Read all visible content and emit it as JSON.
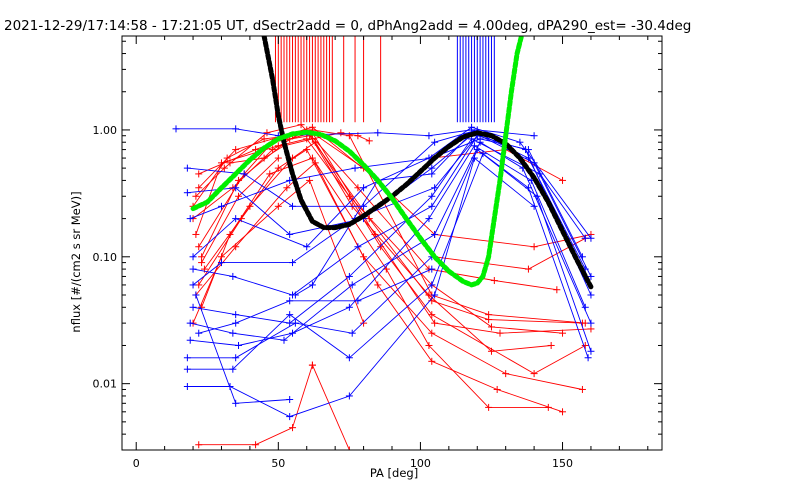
{
  "title": "2021-12-29/17:14:58 - 17:21:05 UT, dSectr2add = 0, dPhAng2add = 4.00deg, dPA290_est= -30.4deg",
  "chart_data": {
    "type": "line",
    "title": "2021-12-29/17:14:58 - 17:21:05 UT, dSectr2add = 0, dPhAng2add = 4.00deg, dPA290_est= -30.4deg",
    "xlabel": "PA [deg]",
    "ylabel": "nflux [#/(cm2 s sr MeV)]",
    "xlim": [
      -5,
      185
    ],
    "ylim": [
      0.003,
      5.5
    ],
    "yscale": "log",
    "xticks": [
      0,
      50,
      100,
      150
    ],
    "xtick_labels": [
      "0",
      "50",
      "100",
      "150"
    ],
    "yticks": [
      0.01,
      0.1,
      1.0
    ],
    "ytick_labels": [
      "0.01",
      "0.10",
      "1.00"
    ],
    "grid": false,
    "legend": "none",
    "colors": {
      "red": "#ff0000",
      "blue": "#0000ff",
      "green": "#00ee00",
      "black": "#000000",
      "axis": "#000000"
    },
    "red_spikes_x": [
      49,
      50,
      51,
      52,
      53,
      54,
      55,
      56,
      57,
      58,
      59,
      60,
      61,
      62,
      63,
      64,
      65,
      66,
      67,
      68,
      69,
      73,
      77,
      80,
      86
    ],
    "blue_spikes_x": [
      113,
      114,
      115,
      116,
      117,
      118,
      119,
      120,
      121,
      122,
      123,
      124,
      125,
      126
    ],
    "series": [
      {
        "color": "red",
        "x": [
          20,
          32,
          45,
          62,
          80,
          105,
          140,
          160
        ],
        "y": [
          0.25,
          0.6,
          0.85,
          0.95,
          0.5,
          0.15,
          0.12,
          0.15
        ]
      },
      {
        "color": "red",
        "x": [
          22,
          35,
          52,
          62,
          85,
          105,
          138,
          158
        ],
        "y": [
          0.35,
          0.7,
          0.9,
          1.05,
          0.4,
          0.1,
          0.08,
          0.14
        ]
      },
      {
        "color": "red",
        "x": [
          21,
          30,
          50,
          60,
          75,
          104,
          125,
          150
        ],
        "y": [
          0.15,
          0.55,
          0.75,
          0.85,
          0.3,
          0.06,
          0.028,
          0.025
        ]
      },
      {
        "color": "red",
        "x": [
          22,
          38,
          48,
          61,
          82,
          104,
          124,
          157
        ],
        "y": [
          0.12,
          0.45,
          0.8,
          0.9,
          0.2,
          0.045,
          0.032,
          0.03
        ]
      },
      {
        "color": "red",
        "x": [
          23,
          36,
          54,
          62,
          84,
          105,
          128,
          160
        ],
        "y": [
          0.1,
          0.4,
          0.85,
          0.95,
          0.15,
          0.03,
          0.025,
          0.027
        ]
      },
      {
        "color": "red",
        "x": [
          20,
          34,
          48,
          60,
          76,
          103,
          125,
          146
        ],
        "y": [
          0.2,
          0.35,
          0.7,
          1.0,
          0.25,
          0.05,
          0.018,
          0.02
        ]
      },
      {
        "color": "red",
        "x": [
          24,
          40,
          55,
          63,
          86,
          104,
          140,
          158
        ],
        "y": [
          0.08,
          0.25,
          0.6,
          0.8,
          0.12,
          0.035,
          0.012,
          0.02
        ]
      },
      {
        "color": "red",
        "x": [
          21,
          31,
          46,
          58,
          78,
          103,
          126,
          148
        ],
        "y": [
          0.3,
          0.5,
          0.95,
          1.1,
          0.35,
          0.08,
          0.065,
          0.055
        ]
      },
      {
        "color": "red",
        "x": [
          22,
          37,
          50,
          60,
          80,
          104,
          130,
          157
        ],
        "y": [
          0.06,
          0.2,
          0.5,
          0.7,
          0.1,
          0.025,
          0.012,
          0.009
        ]
      },
      {
        "color": "red",
        "x": [
          23,
          33,
          47,
          62,
          88,
          103,
          124,
          145
        ],
        "y": [
          0.04,
          0.15,
          0.45,
          0.6,
          0.08,
          0.02,
          0.0065,
          0.0065
        ]
      },
      {
        "color": "red",
        "x": [
          21,
          35,
          53,
          63,
          85,
          104,
          127,
          150
        ],
        "y": [
          0.05,
          0.12,
          0.35,
          0.55,
          0.06,
          0.015,
          0.009,
          0.006
        ]
      },
      {
        "color": "red",
        "x": [
          22,
          42,
          55,
          62,
          75,
          104,
          124,
          158
        ],
        "y": [
          0.45,
          0.7,
          0.9,
          1.0,
          0.9,
          0.05,
          0.035,
          0.03
        ]
      },
      {
        "color": "red",
        "x": [
          20,
          30,
          50,
          61,
          80
        ],
        "y": [
          0.03,
          0.1,
          0.25,
          0.4,
          0.03
        ]
      },
      {
        "color": "red",
        "x": [
          23,
          36,
          50
        ],
        "y": [
          0.09,
          0.3,
          0.6
        ]
      },
      {
        "color": "red",
        "x": [
          33,
          45,
          52,
          62,
          72,
          78,
          82
        ],
        "y": [
          0.55,
          0.6,
          0.75,
          0.85,
          0.95,
          0.9,
          0.82
        ]
      },
      {
        "color": "red",
        "x": [
          22,
          42,
          55,
          62
        ],
        "y": [
          0.0033,
          0.0033,
          0.0045,
          0.014
        ]
      },
      {
        "color": "red",
        "x": [
          62,
          75
        ],
        "y": [
          0.014,
          0.003
        ]
      },
      {
        "color": "red",
        "x": [
          104,
          130,
          150
        ],
        "y": [
          0.6,
          0.7,
          0.4
        ]
      },
      {
        "color": "blue",
        "x": [
          14,
          35,
          50,
          85,
          103,
          118,
          138,
          158
        ],
        "y": [
          1.02,
          1.02,
          0.9,
          0.95,
          0.9,
          1.0,
          0.6,
          0.08
        ]
      },
      {
        "color": "blue",
        "x": [
          18,
          35,
          54,
          80,
          104,
          119,
          140,
          160
        ],
        "y": [
          0.32,
          0.35,
          0.15,
          0.2,
          0.5,
          0.95,
          0.55,
          0.07
        ]
      },
      {
        "color": "blue",
        "x": [
          20,
          34,
          55,
          78,
          104,
          120,
          137,
          160
        ],
        "y": [
          0.08,
          0.07,
          0.05,
          0.12,
          0.25,
          0.9,
          0.7,
          0.05
        ]
      },
      {
        "color": "blue",
        "x": [
          20,
          35,
          54,
          75,
          104,
          118,
          142,
          158
        ],
        "y": [
          0.04,
          0.035,
          0.03,
          0.07,
          0.3,
          0.85,
          0.45,
          0.14
        ]
      },
      {
        "color": "blue",
        "x": [
          19,
          34,
          52,
          76,
          105,
          121,
          136,
          160
        ],
        "y": [
          0.03,
          0.025,
          0.022,
          0.06,
          0.15,
          0.8,
          0.5,
          0.03
        ]
      },
      {
        "color": "blue",
        "x": [
          19,
          36,
          55,
          75,
          103,
          119,
          139,
          158
        ],
        "y": [
          0.022,
          0.02,
          0.025,
          0.04,
          0.2,
          0.75,
          0.4,
          0.04
        ]
      },
      {
        "color": "blue",
        "x": [
          18,
          35,
          56,
          76,
          104,
          120,
          141,
          160
        ],
        "y": [
          0.016,
          0.016,
          0.03,
          0.025,
          0.1,
          0.7,
          0.3,
          0.018
        ]
      },
      {
        "color": "blue",
        "x": [
          18,
          34,
          54,
          75,
          104,
          122,
          138,
          159
        ],
        "y": [
          0.013,
          0.013,
          0.035,
          0.016,
          0.06,
          0.65,
          0.35,
          0.016
        ]
      },
      {
        "color": "blue",
        "x": [
          18,
          33,
          54,
          75,
          105,
          119,
          140
        ],
        "y": [
          0.0095,
          0.0095,
          0.0055,
          0.008,
          0.05,
          0.6,
          0.25
        ]
      },
      {
        "color": "blue",
        "x": [
          21,
          35,
          54
        ],
        "y": [
          0.05,
          0.007,
          0.0075
        ]
      },
      {
        "color": "blue",
        "x": [
          20,
          30,
          55,
          77,
          105,
          120
        ],
        "y": [
          0.06,
          0.09,
          0.09,
          0.2,
          0.35,
          0.9
        ]
      },
      {
        "color": "blue",
        "x": [
          22,
          35,
          54,
          78,
          104
        ],
        "y": [
          0.025,
          0.03,
          0.045,
          0.045,
          0.08
        ]
      },
      {
        "color": "blue",
        "x": [
          20,
          35,
          60,
          80,
          103,
          118,
          135,
          160
        ],
        "y": [
          0.1,
          0.2,
          0.12,
          0.35,
          0.6,
          1.05,
          0.8,
          0.14
        ]
      },
      {
        "color": "blue",
        "x": [
          18,
          38,
          55,
          80,
          105,
          120,
          140
        ],
        "y": [
          0.5,
          0.45,
          0.25,
          0.25,
          0.8,
          1.0,
          0.9
        ]
      },
      {
        "color": "blue",
        "x": [
          56,
          62,
          85,
          104,
          118
        ],
        "y": [
          0.05,
          0.06,
          0.4,
          0.45,
          0.95
        ]
      },
      {
        "color": "blue",
        "x": [
          19,
          30,
          54,
          77,
          104,
          121,
          138,
          157
        ],
        "y": [
          0.2,
          0.25,
          0.4,
          0.5,
          0.6,
          0.85,
          0.7,
          0.1
        ]
      }
    ],
    "black_curve": {
      "x": [
        45,
        48,
        50,
        52,
        55,
        58,
        62,
        66,
        70,
        75,
        80,
        85,
        90,
        95,
        100,
        105,
        110,
        115,
        120,
        125,
        130,
        135,
        140,
        145,
        150,
        155,
        160
      ],
      "y": [
        5.5,
        2.5,
        1.3,
        0.8,
        0.45,
        0.28,
        0.19,
        0.17,
        0.17,
        0.18,
        0.21,
        0.25,
        0.3,
        0.37,
        0.47,
        0.6,
        0.74,
        0.88,
        0.95,
        0.9,
        0.78,
        0.6,
        0.42,
        0.27,
        0.16,
        0.095,
        0.058
      ]
    },
    "green_curve": {
      "x": [
        20,
        25,
        30,
        35,
        40,
        45,
        50,
        55,
        60,
        65,
        70,
        75,
        80,
        85,
        90,
        95,
        100,
        105,
        110,
        115,
        118,
        120,
        122,
        124,
        126,
        128,
        130,
        132,
        134,
        136
      ],
      "y": [
        0.24,
        0.27,
        0.35,
        0.45,
        0.58,
        0.72,
        0.85,
        0.93,
        0.96,
        0.92,
        0.82,
        0.68,
        0.53,
        0.4,
        0.29,
        0.2,
        0.14,
        0.1,
        0.077,
        0.064,
        0.06,
        0.062,
        0.07,
        0.1,
        0.2,
        0.4,
        0.9,
        2.0,
        4.0,
        6.0
      ]
    }
  }
}
